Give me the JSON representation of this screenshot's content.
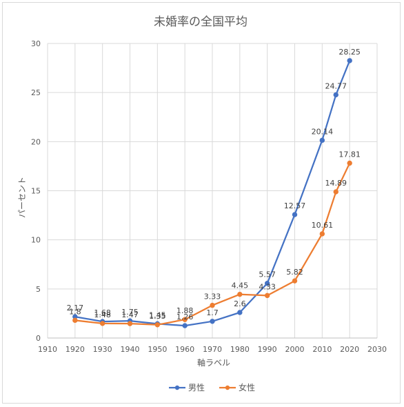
{
  "chart_data": {
    "type": "scatter",
    "title": "未婚率の全国平均",
    "xlabel": "軸ラベル",
    "ylabel": "パーセント",
    "xlim": [
      1910,
      2030
    ],
    "ylim": [
      0,
      30
    ],
    "xticks": [
      1910,
      1920,
      1930,
      1940,
      1950,
      1960,
      1970,
      1980,
      1990,
      2000,
      2010,
      2020,
      2030
    ],
    "yticks": [
      0,
      5,
      10,
      15,
      20,
      25,
      30
    ],
    "x": [
      1920,
      1930,
      1940,
      1950,
      1960,
      1970,
      1980,
      1990,
      2000,
      2010,
      2015,
      2020
    ],
    "grid": true,
    "legend_position": "bottom",
    "series": [
      {
        "name": "男性",
        "color": "#4472c4",
        "values": [
          2.17,
          1.68,
          1.75,
          1.45,
          1.26,
          1.7,
          2.6,
          5.57,
          12.57,
          20.14,
          24.77,
          28.25
        ],
        "labels": [
          "2.17",
          "1.68",
          "1.75",
          "1.45",
          "1.26",
          "1.7",
          "2.6",
          "5.57",
          "12.57",
          "20.14",
          "24.77",
          "28.25"
        ]
      },
      {
        "name": "女性",
        "color": "#ed7d31",
        "values": [
          1.8,
          1.48,
          1.47,
          1.35,
          1.88,
          3.33,
          4.45,
          4.33,
          5.82,
          10.61,
          14.89,
          17.81
        ],
        "labels": [
          "1.8",
          "1.48",
          "1.47",
          "1.35",
          "1.88",
          "3.33",
          "4.45",
          "4.33",
          "5.82",
          "10.61",
          "14.89",
          "17.81"
        ]
      }
    ]
  }
}
